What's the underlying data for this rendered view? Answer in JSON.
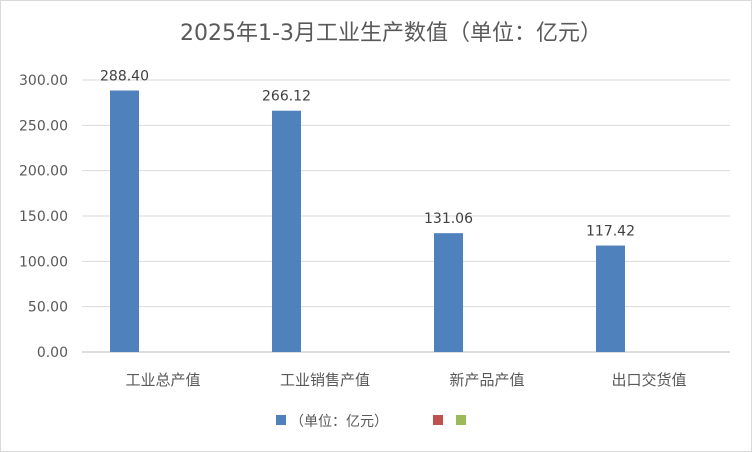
{
  "chart_data": {
    "type": "bar",
    "title": "2025年1-3月工业生产数值（单位：亿元）",
    "categories": [
      "工业总产值",
      "工业销售产值",
      "新产品产值",
      "出口交货值"
    ],
    "series": [
      {
        "name": "（单位：亿元）",
        "values": [
          288.4,
          266.12,
          131.06,
          117.42
        ],
        "color": "#4f81bd"
      },
      {
        "name": "",
        "values": [
          null,
          null,
          null,
          null
        ],
        "color": "#c0504d"
      },
      {
        "name": "",
        "values": [
          null,
          null,
          null,
          null
        ],
        "color": "#9bbb59"
      }
    ],
    "data_labels": [
      "288.40",
      "266.12",
      "131.06",
      "117.42"
    ],
    "yticks": [
      "0.00",
      "50.00",
      "100.00",
      "150.00",
      "200.00",
      "250.00",
      "300.00"
    ],
    "ylim": [
      0,
      300
    ],
    "xlabel": "",
    "ylabel": "",
    "grid": true,
    "legend": "bottom"
  }
}
